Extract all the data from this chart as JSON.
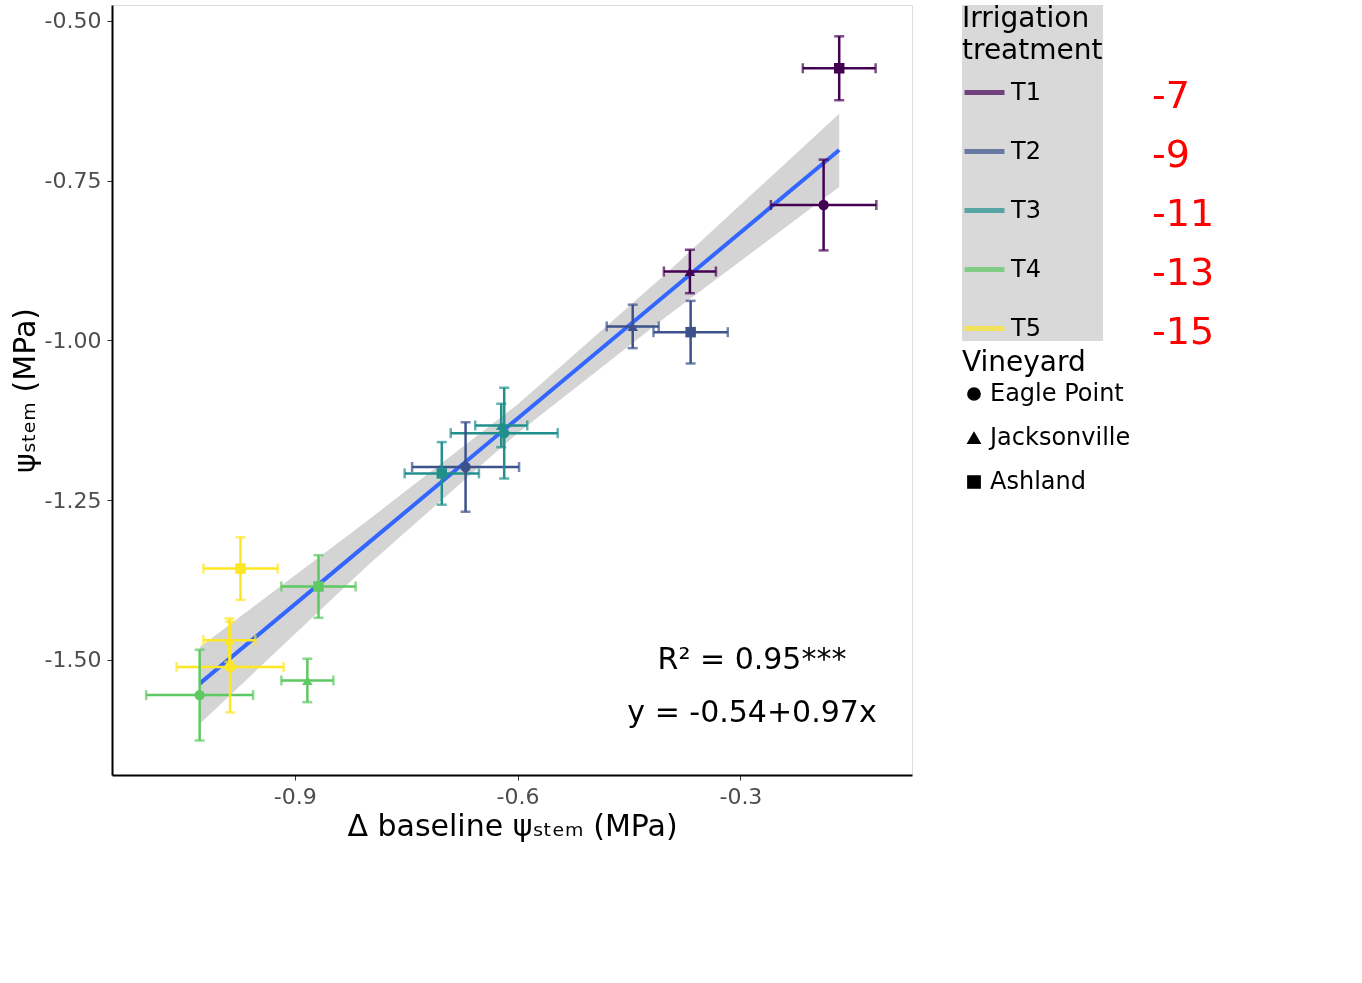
{
  "chart_data": {
    "type": "scatter",
    "xlabel": "Δ baseline ψₛₜₑₘ (MPa)",
    "ylabel": "ψₛₜₑₘ (MPa)",
    "legend_title": [
      "Irrigation treatment",
      "Vineyard"
    ],
    "legend": "right",
    "xlim": [
      -1.146,
      -0.069
    ],
    "ylim": [
      -1.68,
      -0.475
    ],
    "xticks": [
      -0.9,
      -0.6,
      -0.3
    ],
    "yticks": [
      {
        "value": -0.5,
        "label": "-0.50"
      },
      {
        "value": -0.75,
        "label": "-0.75"
      },
      {
        "value": -1.0,
        "label": "-1.00"
      },
      {
        "value": -1.25,
        "label": "-1.25"
      },
      {
        "value": -1.5,
        "label": "-1.50"
      }
    ],
    "grid": false,
    "series": [
      {
        "name": "Eagle Point",
        "color": "#000000",
        "marker": "circle"
      },
      {
        "name": "Jacksonville",
        "color": "#000000",
        "marker": "triangle"
      },
      {
        "name": "Ashland",
        "color": "#000000",
        "marker": "square"
      },
      {
        "name": "T1",
        "color": "#440154",
        "marker": [
          "square",
          "circle",
          "triangle"
        ],
        "x": [
          -0.167,
          -0.188,
          -0.368
        ],
        "values": [
          -0.574,
          -0.788,
          -0.892
        ],
        "xerrors": [
          0.049,
          0.071,
          0.035
        ],
        "errors": [
          0.05,
          0.071,
          0.034
        ]
      },
      {
        "name": "T2",
        "color": "#3b528b",
        "marker": [
          "triangle",
          "square",
          "circle"
        ],
        "x": [
          -0.445,
          -0.367,
          -0.67
        ],
        "values": [
          -0.978,
          -0.987,
          -1.198
        ],
        "xerrors": [
          0.035,
          0.05,
          0.072
        ],
        "errors": [
          0.034,
          0.049,
          0.07
        ]
      },
      {
        "name": "T3",
        "color": "#21908c",
        "marker": [
          "triangle",
          "circle",
          "square"
        ],
        "x": [
          -0.622,
          -0.618,
          -0.702
        ],
        "values": [
          -1.133,
          -1.145,
          -1.208
        ],
        "xerrors": [
          0.035,
          0.072,
          0.05
        ],
        "errors": [
          0.034,
          0.071,
          0.049
        ]
      },
      {
        "name": "T4",
        "color": "#5ec962",
        "marker": [
          "square",
          "triangle",
          "circle"
        ],
        "x": [
          -0.868,
          -0.883,
          -1.028
        ],
        "values": [
          -1.385,
          -1.532,
          -1.555
        ],
        "xerrors": [
          0.05,
          0.035,
          0.072
        ],
        "errors": [
          0.049,
          0.034,
          0.071
        ]
      },
      {
        "name": "T5",
        "color": "#fde725",
        "marker": [
          "square",
          "triangle",
          "circle"
        ],
        "x": [
          -0.973,
          -0.988,
          -0.987
        ],
        "values": [
          -1.357,
          -1.469,
          -1.511
        ],
        "xerrors": [
          0.05,
          0.035,
          0.072
        ],
        "errors": [
          0.049,
          0.034,
          0.071
        ]
      },
      {
        "type": "line",
        "color": "#3366ff",
        "x": [
          -1.028,
          -0.8,
          -0.6,
          -0.4,
          -0.167
        ],
        "values": [
          -1.537,
          -1.316,
          -1.122,
          -0.928,
          -0.702
        ],
        "lower": [
          -1.6,
          -1.35,
          -1.145,
          -0.963,
          -0.76
        ],
        "upper": [
          -1.48,
          -1.28,
          -1.1,
          -0.895,
          -0.645
        ]
      }
    ],
    "annotations": [
      "R² = 0.95***",
      "y = -0.54+0.97x",
      "-7",
      "-9",
      "-11",
      "-13",
      "-15"
    ]
  }
}
